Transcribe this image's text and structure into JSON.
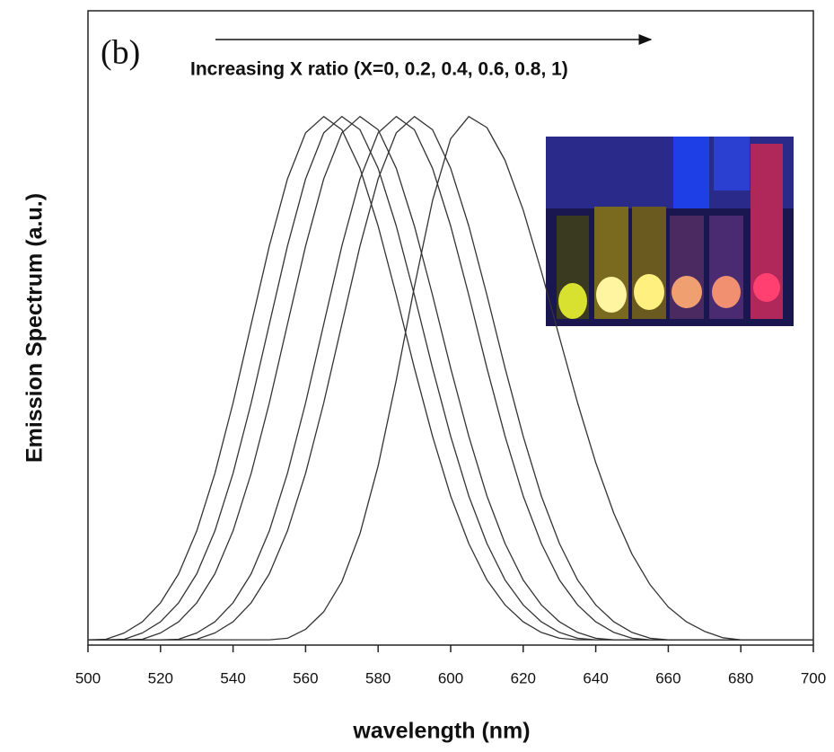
{
  "chart_data": {
    "type": "line",
    "label": "(b)",
    "annotation": "Increasing X ratio (X=0, 0.2, 0.4, 0.6, 0.8, 1)",
    "xlabel": "wavelength (nm)",
    "ylabel": "Emission Spectrum (a.u.)",
    "x": [
      500,
      505,
      510,
      515,
      520,
      525,
      530,
      535,
      540,
      545,
      550,
      555,
      560,
      565,
      570,
      575,
      580,
      585,
      590,
      595,
      600,
      605,
      610,
      615,
      620,
      625,
      630,
      635,
      640,
      645,
      650,
      655,
      660,
      665,
      670,
      675,
      680,
      685,
      690,
      695,
      700
    ],
    "xlim": [
      500,
      700
    ],
    "xticks": [
      500,
      520,
      540,
      560,
      580,
      600,
      620,
      640,
      660,
      680,
      700
    ],
    "ylim": [
      0,
      1.2
    ],
    "series": [
      {
        "color": "#333333",
        "values": [
          0.01,
          0.011,
          0.023,
          0.044,
          0.08,
          0.135,
          0.216,
          0.325,
          0.458,
          0.607,
          0.755,
          0.882,
          0.969,
          1,
          0.975,
          0.902,
          0.793,
          0.662,
          0.524,
          0.395,
          0.282,
          0.192,
          0.123,
          0.076,
          0.044,
          0.024,
          0.013,
          0.01,
          0.01,
          0.01,
          0.01,
          0.01,
          0.01,
          0.01,
          0.01,
          0.01,
          0.01,
          0.01,
          0.01,
          0.01,
          0.01
        ]
      },
      {
        "color": "#333333",
        "values": [
          0.01,
          0.01,
          0.011,
          0.023,
          0.044,
          0.08,
          0.135,
          0.216,
          0.325,
          0.458,
          0.607,
          0.755,
          0.882,
          0.969,
          1,
          0.975,
          0.902,
          0.793,
          0.662,
          0.524,
          0.395,
          0.282,
          0.192,
          0.123,
          0.076,
          0.044,
          0.024,
          0.013,
          0.01,
          0.01,
          0.01,
          0.01,
          0.01,
          0.01,
          0.01,
          0.01,
          0.01,
          0.01,
          0.01,
          0.01,
          0.01
        ]
      },
      {
        "color": "#333333",
        "values": [
          0.01,
          0.01,
          0.01,
          0.011,
          0.023,
          0.044,
          0.08,
          0.135,
          0.216,
          0.325,
          0.458,
          0.607,
          0.755,
          0.882,
          0.969,
          1,
          0.975,
          0.902,
          0.793,
          0.662,
          0.524,
          0.395,
          0.282,
          0.192,
          0.123,
          0.076,
          0.044,
          0.024,
          0.013,
          0.01,
          0.01,
          0.01,
          0.01,
          0.01,
          0.01,
          0.01,
          0.01,
          0.01,
          0.01,
          0.01,
          0.01
        ]
      },
      {
        "color": "#333333",
        "values": [
          0.01,
          0.01,
          0.01,
          0.01,
          0.01,
          0.011,
          0.023,
          0.044,
          0.08,
          0.135,
          0.216,
          0.325,
          0.458,
          0.607,
          0.755,
          0.882,
          0.969,
          1,
          0.975,
          0.902,
          0.793,
          0.662,
          0.524,
          0.395,
          0.282,
          0.192,
          0.123,
          0.076,
          0.044,
          0.024,
          0.013,
          0.01,
          0.01,
          0.01,
          0.01,
          0.01,
          0.01,
          0.01,
          0.01,
          0.01,
          0.01
        ]
      },
      {
        "color": "#333333",
        "values": [
          0.01,
          0.01,
          0.01,
          0.01,
          0.01,
          0.01,
          0.011,
          0.023,
          0.044,
          0.08,
          0.135,
          0.216,
          0.325,
          0.458,
          0.607,
          0.755,
          0.882,
          0.969,
          1,
          0.975,
          0.902,
          0.793,
          0.662,
          0.524,
          0.395,
          0.282,
          0.192,
          0.123,
          0.076,
          0.044,
          0.024,
          0.013,
          0.01,
          0.01,
          0.01,
          0.01,
          0.01,
          0.01,
          0.01,
          0.01,
          0.01
        ]
      },
      {
        "color": "#333333",
        "values": [
          0.01,
          0.01,
          0.01,
          0.01,
          0.01,
          0.01,
          0.01,
          0.01,
          0.01,
          0.01,
          0.01,
          0.013,
          0.03,
          0.063,
          0.12,
          0.211,
          0.339,
          0.501,
          0.678,
          0.841,
          0.958,
          1,
          0.979,
          0.917,
          0.823,
          0.707,
          0.582,
          0.458,
          0.345,
          0.249,
          0.172,
          0.114,
          0.072,
          0.044,
          0.026,
          0.014,
          0.01,
          0.01,
          0.01,
          0.01,
          0.01
        ]
      }
    ]
  }
}
